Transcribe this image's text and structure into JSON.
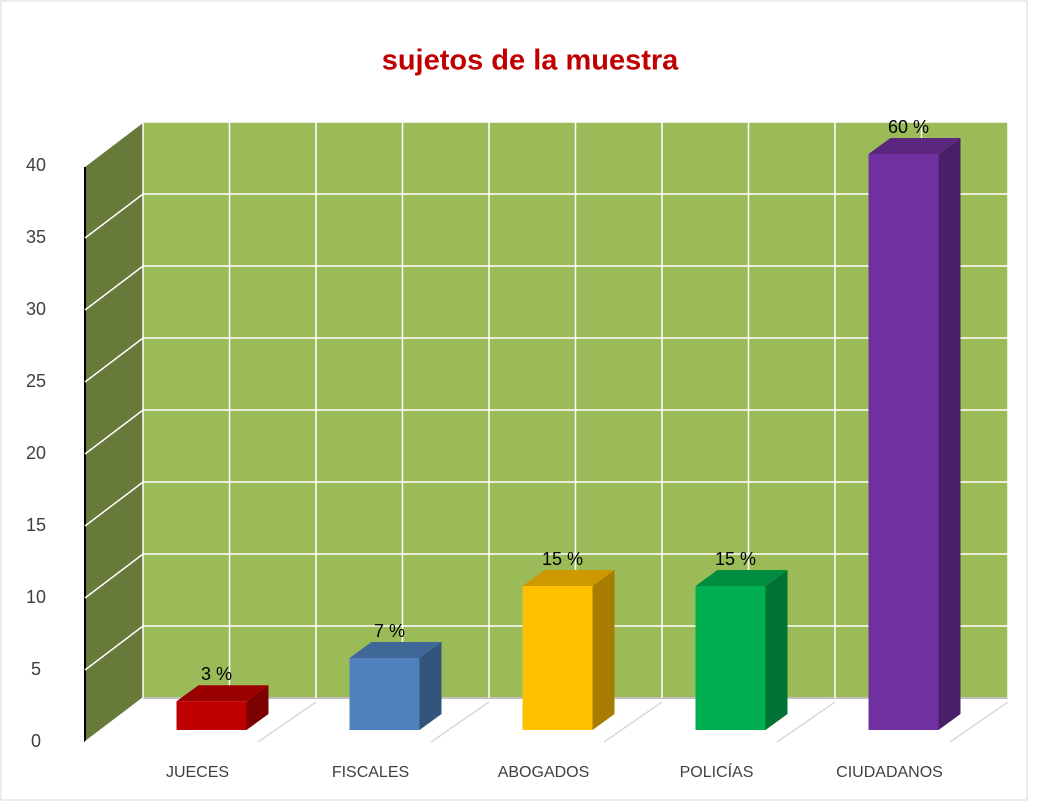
{
  "chart_data": {
    "type": "bar3d",
    "title": "sujetos de la muestra",
    "categories": [
      "JUECES",
      "FISCALES",
      "ABOGADOS",
      "POLICÍAS",
      "CIUDADANOS"
    ],
    "values": [
      2,
      5,
      10,
      10,
      40
    ],
    "value_labels": [
      "3 %",
      "7 %",
      "15 %",
      "15 %",
      "60 %"
    ],
    "colors": [
      "#c00000",
      "#4f81bd",
      "#ffc000",
      "#00b050",
      "#7030a0"
    ],
    "ylim": [
      0,
      40
    ],
    "yticks": [
      0,
      5,
      10,
      15,
      20,
      25,
      30,
      35,
      40
    ],
    "grid": true
  }
}
